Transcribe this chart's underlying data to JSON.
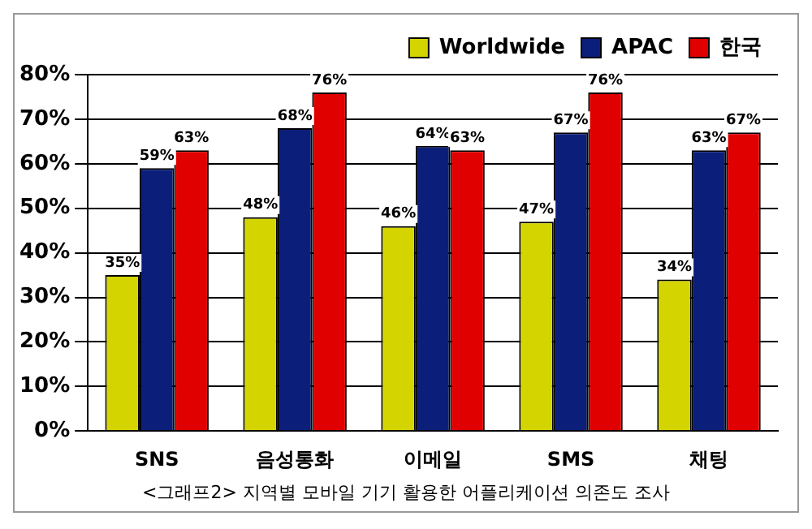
{
  "chart_data": {
    "type": "bar",
    "categories": [
      "SNS",
      "음성통화",
      "이메일",
      "SMS",
      "채팅"
    ],
    "series": [
      {
        "name": "Worldwide",
        "color": "#d4d400",
        "values": [
          35,
          48,
          46,
          47,
          34
        ],
        "value_labels": [
          "35%",
          "48%",
          "46%",
          "47%",
          "34%"
        ]
      },
      {
        "name": "APAC",
        "color": "#0b1f7a",
        "values": [
          59,
          68,
          64,
          67,
          63
        ],
        "value_labels": [
          "59%",
          "68%",
          "64%",
          "67%",
          "63%"
        ]
      },
      {
        "name": "한국",
        "color": "#e00000",
        "values": [
          63,
          76,
          63,
          76,
          67
        ],
        "value_labels": [
          "63%",
          "76%",
          "63%",
          "76%",
          "67%"
        ]
      }
    ],
    "ylim": [
      0,
      80
    ],
    "yticks": [
      {
        "value": 0,
        "label": "0%"
      },
      {
        "value": 10,
        "label": "10%"
      },
      {
        "value": 20,
        "label": "20%"
      },
      {
        "value": 30,
        "label": "30%"
      },
      {
        "value": 40,
        "label": "40%"
      },
      {
        "value": 50,
        "label": "50%"
      },
      {
        "value": 60,
        "label": "60%"
      },
      {
        "value": 70,
        "label": "70%"
      },
      {
        "value": 80,
        "label": "80%"
      }
    ],
    "grid": "y",
    "legend": "top right",
    "annotations": [
      "<그래프2> 지역별 모바일 기기 활용한 어플리케이션 의존도 조사"
    ]
  }
}
